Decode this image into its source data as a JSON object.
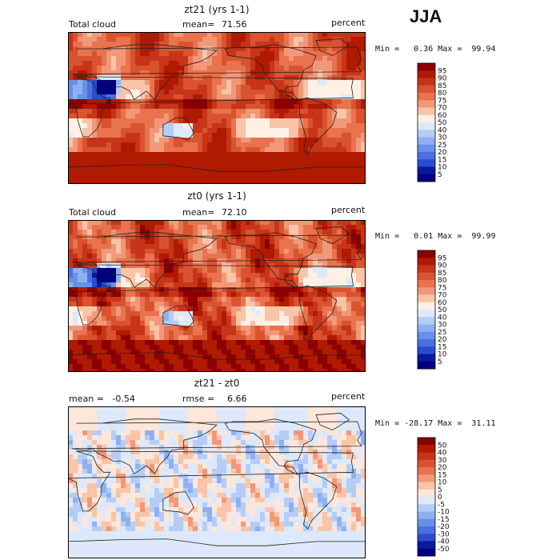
{
  "season_label": "JJA",
  "panels": [
    {
      "title": "zt21 (yrs 1-1)",
      "left_label": "Total cloud",
      "mid_label": "mean=",
      "mid_value": "71.56",
      "units": "percent",
      "minmax": "Min =   0.36 Max =  99.94"
    },
    {
      "title": "zt0 (yrs 1-1)",
      "left_label": "Total cloud",
      "mid_label": "mean=",
      "mid_value": "72.10",
      "units": "percent",
      "minmax": "Min =   0.01 Max =  99.99"
    },
    {
      "title": "zt21 - zt0",
      "left_label": "mean =   -0.54",
      "mid_label": "rmse =",
      "mid_value": "6.66",
      "units": "percent",
      "minmax": "Min = -28.17 Max =  31.11"
    }
  ],
  "chart_data": [
    {
      "type": "heatmap",
      "title": "zt21 (yrs 1-1)",
      "variable": "Total cloud",
      "units": "percent",
      "mean": 71.56,
      "min": 0.36,
      "max": 99.94,
      "colorbar_levels": [
        "95",
        "90",
        "85",
        "80",
        "75",
        "70",
        "60",
        "50",
        "40",
        "30",
        "25",
        "20",
        "15",
        "10",
        "5"
      ],
      "colorbar_colors": [
        "#8b0000",
        "#b01a00",
        "#c8341a",
        "#d9532f",
        "#e8734e",
        "#f2987a",
        "#f9c4a8",
        "#fff0e6",
        "#dde9fb",
        "#b5cdf6",
        "#8fb0f0",
        "#6890e8",
        "#4a70e0",
        "#2a4cd0",
        "#0a1a98",
        "#000080"
      ]
    },
    {
      "type": "heatmap",
      "title": "zt0 (yrs 1-1)",
      "variable": "Total cloud",
      "units": "percent",
      "mean": 72.1,
      "min": 0.01,
      "max": 99.99,
      "colorbar_levels": [
        "95",
        "90",
        "85",
        "80",
        "75",
        "70",
        "60",
        "50",
        "40",
        "30",
        "25",
        "20",
        "15",
        "10",
        "5"
      ],
      "colorbar_colors": [
        "#8b0000",
        "#b01a00",
        "#c8341a",
        "#d9532f",
        "#e8734e",
        "#f2987a",
        "#f9c4a8",
        "#fff0e6",
        "#dde9fb",
        "#b5cdf6",
        "#8fb0f0",
        "#6890e8",
        "#4a70e0",
        "#2a4cd0",
        "#0a1a98",
        "#000080"
      ]
    },
    {
      "type": "heatmap",
      "title": "zt21 - zt0",
      "units": "percent",
      "mean": -0.54,
      "rmse": 6.66,
      "min": -28.17,
      "max": 31.11,
      "colorbar_levels": [
        "50",
        "40",
        "30",
        "20",
        "15",
        "10",
        "5",
        "0",
        "-5",
        "-10",
        "-15",
        "-20",
        "-30",
        "-40",
        "-50"
      ],
      "colorbar_colors": [
        "#8b0000",
        "#b01a00",
        "#c8341a",
        "#d9532f",
        "#e8734e",
        "#f2987a",
        "#f9c4a8",
        "#fde6da",
        "#dde9fb",
        "#b5cdf6",
        "#8fb0f0",
        "#6890e8",
        "#4a70e0",
        "#2a4cd0",
        "#0a1a98",
        "#000080"
      ]
    }
  ]
}
